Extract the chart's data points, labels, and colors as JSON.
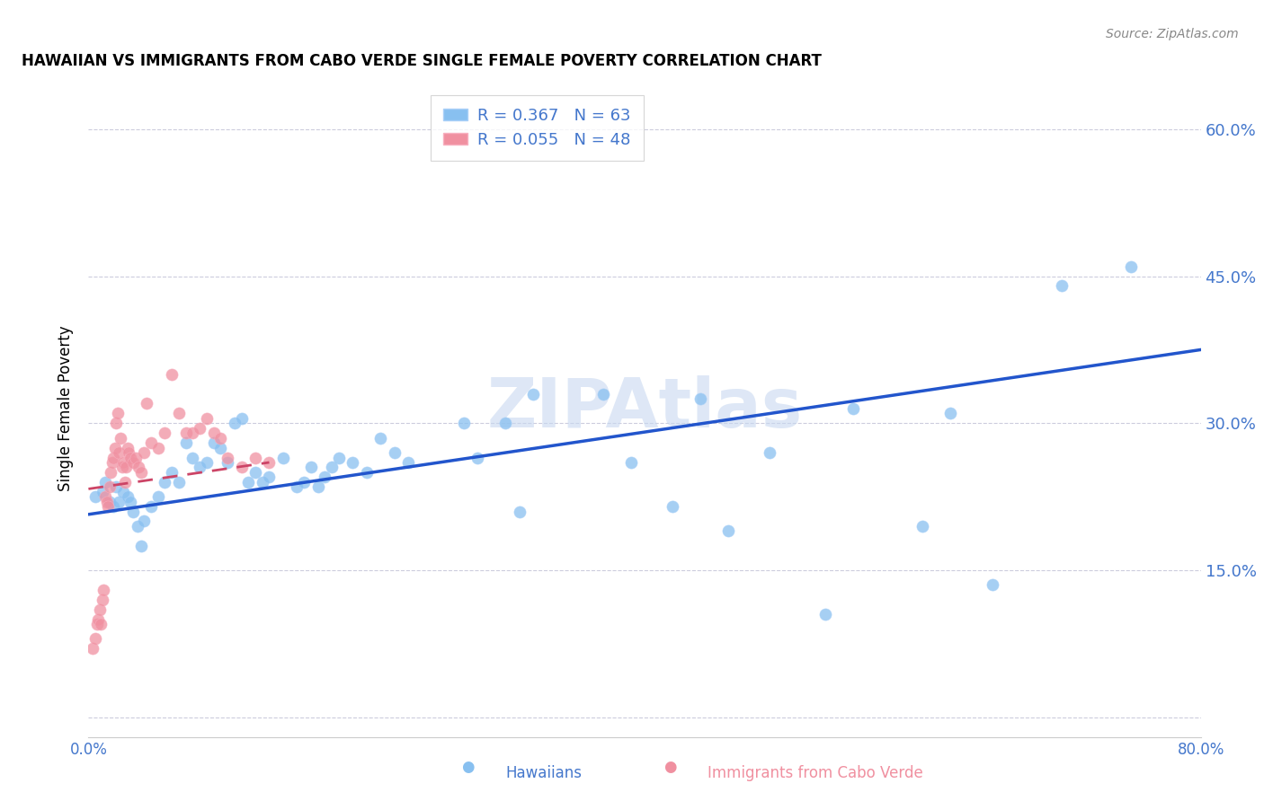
{
  "title": "HAWAIIAN VS IMMIGRANTS FROM CABO VERDE SINGLE FEMALE POVERTY CORRELATION CHART",
  "source": "Source: ZipAtlas.com",
  "ylabel": "Single Female Poverty",
  "yticks": [
    0.0,
    0.15,
    0.3,
    0.45,
    0.6
  ],
  "xlim": [
    0.0,
    0.8
  ],
  "ylim": [
    -0.02,
    0.65
  ],
  "watermark": "ZIPAtlas",
  "legend1_label": "R = 0.367   N = 63",
  "legend2_label": "R = 0.055   N = 48",
  "blue_color": "#88c0f0",
  "pink_color": "#f090a0",
  "trendline_blue_color": "#2255cc",
  "trendline_pink_color": "#cc4466",
  "label_color": "#4477cc",
  "blue_x": [
    0.005,
    0.01,
    0.012,
    0.015,
    0.018,
    0.02,
    0.022,
    0.025,
    0.028,
    0.03,
    0.032,
    0.035,
    0.038,
    0.04,
    0.045,
    0.05,
    0.055,
    0.06,
    0.065,
    0.07,
    0.075,
    0.08,
    0.085,
    0.09,
    0.095,
    0.1,
    0.105,
    0.11,
    0.115,
    0.12,
    0.125,
    0.13,
    0.14,
    0.15,
    0.155,
    0.16,
    0.165,
    0.17,
    0.175,
    0.18,
    0.19,
    0.2,
    0.21,
    0.22,
    0.23,
    0.27,
    0.28,
    0.3,
    0.31,
    0.32,
    0.37,
    0.39,
    0.42,
    0.44,
    0.46,
    0.49,
    0.53,
    0.55,
    0.6,
    0.62,
    0.65,
    0.7,
    0.75
  ],
  "blue_y": [
    0.225,
    0.23,
    0.24,
    0.22,
    0.215,
    0.235,
    0.22,
    0.23,
    0.225,
    0.22,
    0.21,
    0.195,
    0.175,
    0.2,
    0.215,
    0.225,
    0.24,
    0.25,
    0.24,
    0.28,
    0.265,
    0.255,
    0.26,
    0.28,
    0.275,
    0.26,
    0.3,
    0.305,
    0.24,
    0.25,
    0.24,
    0.245,
    0.265,
    0.235,
    0.24,
    0.255,
    0.235,
    0.245,
    0.255,
    0.265,
    0.26,
    0.25,
    0.285,
    0.27,
    0.26,
    0.3,
    0.265,
    0.3,
    0.21,
    0.33,
    0.33,
    0.26,
    0.215,
    0.325,
    0.19,
    0.27,
    0.105,
    0.315,
    0.195,
    0.31,
    0.135,
    0.44,
    0.46
  ],
  "pink_x": [
    0.003,
    0.005,
    0.006,
    0.007,
    0.008,
    0.009,
    0.01,
    0.011,
    0.012,
    0.013,
    0.014,
    0.015,
    0.016,
    0.017,
    0.018,
    0.019,
    0.02,
    0.021,
    0.022,
    0.023,
    0.024,
    0.025,
    0.026,
    0.027,
    0.028,
    0.029,
    0.03,
    0.032,
    0.034,
    0.036,
    0.038,
    0.04,
    0.042,
    0.045,
    0.05,
    0.055,
    0.06,
    0.065,
    0.07,
    0.075,
    0.08,
    0.085,
    0.09,
    0.095,
    0.1,
    0.11,
    0.12,
    0.13
  ],
  "pink_y": [
    0.07,
    0.08,
    0.095,
    0.1,
    0.11,
    0.095,
    0.12,
    0.13,
    0.225,
    0.22,
    0.215,
    0.235,
    0.25,
    0.26,
    0.265,
    0.275,
    0.3,
    0.31,
    0.27,
    0.285,
    0.255,
    0.26,
    0.24,
    0.255,
    0.275,
    0.27,
    0.265,
    0.26,
    0.265,
    0.255,
    0.25,
    0.27,
    0.32,
    0.28,
    0.275,
    0.29,
    0.35,
    0.31,
    0.29,
    0.29,
    0.295,
    0.305,
    0.29,
    0.285,
    0.265,
    0.255,
    0.265,
    0.26
  ],
  "blue_trend_x": [
    0.0,
    0.8
  ],
  "blue_trend_y": [
    0.207,
    0.375
  ],
  "pink_trend_x": [
    0.0,
    0.13
  ],
  "pink_trend_y": [
    0.233,
    0.26
  ]
}
